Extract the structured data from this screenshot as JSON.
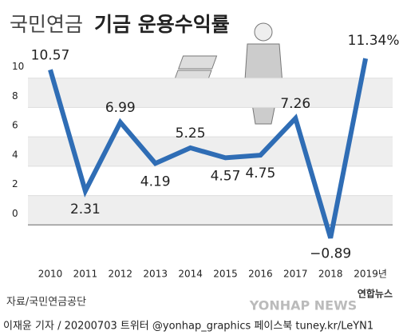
{
  "title_parts": [
    "국민연금",
    "기금 운용수익률"
  ],
  "chart_data": {
    "type": "line",
    "categories": [
      "2010",
      "2011",
      "2012",
      "2013",
      "2014",
      "2015",
      "2016",
      "2017",
      "2018",
      "2019년"
    ],
    "values": [
      10.57,
      2.31,
      6.99,
      4.19,
      5.25,
      4.57,
      4.75,
      7.26,
      -0.89,
      11.34
    ],
    "value_labels": [
      "10.57",
      "2.31",
      "6.99",
      "4.19",
      "5.25",
      "4.57",
      "4.75",
      "7.26",
      "−0.89",
      "11.34%"
    ],
    "color": "#2f6db5",
    "ylim": [
      -2,
      12
    ],
    "yticks": [
      0,
      2,
      4,
      6,
      8,
      10
    ],
    "grid": true
  },
  "source": "자료/국민연금공단",
  "logo": "YONHAP NEWS",
  "logo_name": "연합뉴스",
  "footer": "이재윤 기자 / 20200703  트위터 @yonhap_graphics  페이스북 tuney.kr/LeYN1"
}
